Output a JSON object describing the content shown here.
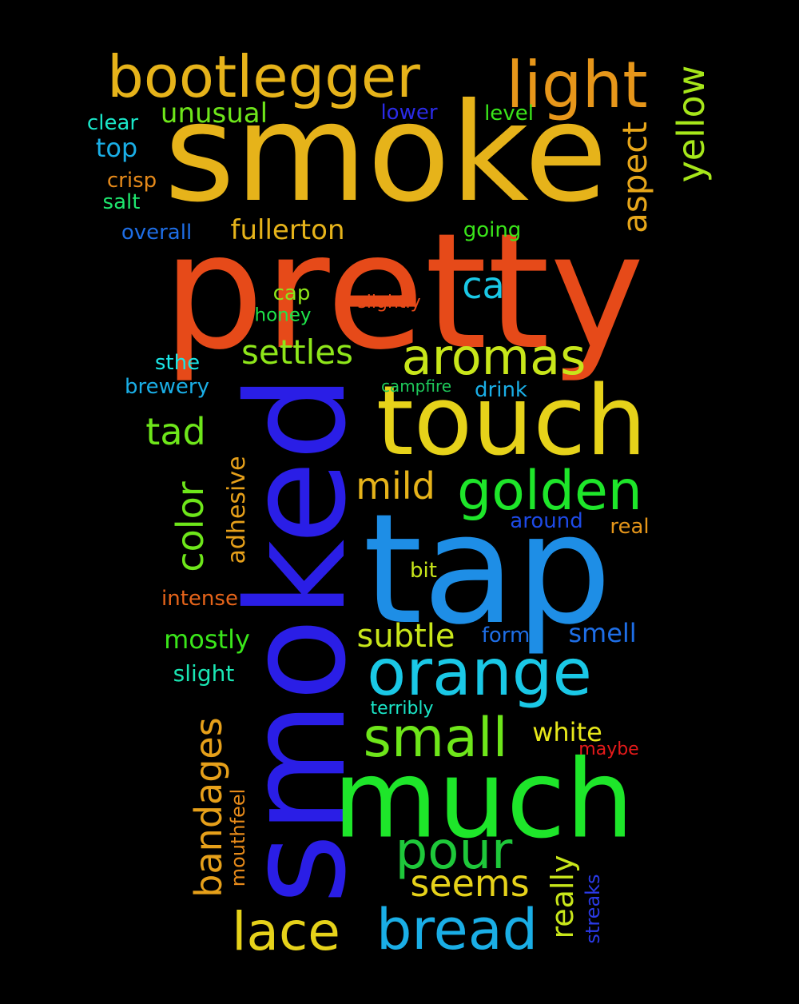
{
  "words": [
    {
      "text": "smoke",
      "color": "#e6b31a"
    },
    {
      "text": "pretty",
      "color": "#e64a19"
    },
    {
      "text": "smoked",
      "color": "#2a1ee6"
    },
    {
      "text": "tap",
      "color": "#1e8ee6"
    },
    {
      "text": "touch",
      "color": "#e6d21a"
    },
    {
      "text": "much",
      "color": "#1ee62a"
    },
    {
      "text": "bootlegger",
      "color": "#e6b31a"
    },
    {
      "text": "light",
      "color": "#e6961a"
    },
    {
      "text": "orange",
      "color": "#1ac8e6"
    },
    {
      "text": "golden",
      "color": "#1ee62a"
    },
    {
      "text": "aromas",
      "color": "#c8e61a"
    },
    {
      "text": "bread",
      "color": "#1aaee6"
    },
    {
      "text": "small",
      "color": "#6ee61a"
    },
    {
      "text": "pour",
      "color": "#1ec83a"
    },
    {
      "text": "lace",
      "color": "#e6d21a"
    },
    {
      "text": "settles",
      "color": "#8ee61a"
    },
    {
      "text": "yellow",
      "color": "#a6e61a"
    },
    {
      "text": "aspect",
      "color": "#e6a61a"
    },
    {
      "text": "bandages",
      "color": "#e6a01a"
    },
    {
      "text": "color",
      "color": "#6ee61a"
    },
    {
      "text": "tad",
      "color": "#6ee61a"
    },
    {
      "text": "mild",
      "color": "#e6b31a"
    },
    {
      "text": "subtle",
      "color": "#c8e61a"
    },
    {
      "text": "seems",
      "color": "#e6d21a"
    },
    {
      "text": "really",
      "color": "#c8e61a"
    },
    {
      "text": "ca",
      "color": "#1ac8e6"
    },
    {
      "text": "unusual",
      "color": "#6ee61a"
    },
    {
      "text": "fullerton",
      "color": "#e6b31a"
    },
    {
      "text": "adhesive",
      "color": "#e6a01a"
    },
    {
      "text": "white",
      "color": "#e6e61a"
    },
    {
      "text": "mostly",
      "color": "#3ae61a"
    },
    {
      "text": "smell",
      "color": "#1e6ee6"
    },
    {
      "text": "mouthfeel",
      "color": "#e68a1a"
    },
    {
      "text": "streaks",
      "color": "#2a3ae6"
    },
    {
      "text": "top",
      "color": "#1aaee6"
    },
    {
      "text": "clear",
      "color": "#1ae6c8"
    },
    {
      "text": "lower",
      "color": "#2a2ae6"
    },
    {
      "text": "level",
      "color": "#3ae61a"
    },
    {
      "text": "crisp",
      "color": "#e68a1a"
    },
    {
      "text": "salt",
      "color": "#1ee66e"
    },
    {
      "text": "overall",
      "color": "#1e6ee6"
    },
    {
      "text": "going",
      "color": "#3ae61a"
    },
    {
      "text": "cap",
      "color": "#8ee61a"
    },
    {
      "text": "honey",
      "color": "#1ee64a"
    },
    {
      "text": "slightly",
      "color": "#e64a19"
    },
    {
      "text": "sthe",
      "color": "#1ae6e6"
    },
    {
      "text": "brewery",
      "color": "#1aaee6"
    },
    {
      "text": "campfire",
      "color": "#1ec85a"
    },
    {
      "text": "drink",
      "color": "#1aaee6"
    },
    {
      "text": "around",
      "color": "#1e4ae6"
    },
    {
      "text": "real",
      "color": "#e6961a"
    },
    {
      "text": "bit",
      "color": "#c8e61a"
    },
    {
      "text": "intense",
      "color": "#e6641a"
    },
    {
      "text": "form",
      "color": "#1e6ee6"
    },
    {
      "text": "slight",
      "color": "#1ae6b3"
    },
    {
      "text": "terribly",
      "color": "#1ae6c8"
    },
    {
      "text": "maybe",
      "color": "#e61a1a"
    }
  ]
}
